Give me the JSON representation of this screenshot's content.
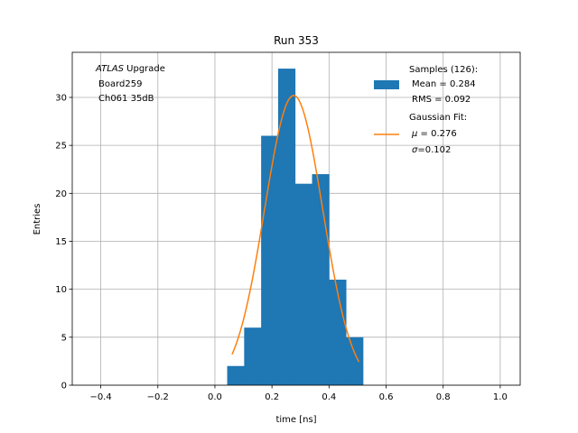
{
  "chart_data": {
    "type": "bar",
    "title": "Run 353",
    "xlabel": "time [ns]",
    "ylabel": "Entries",
    "xlim": [
      -0.5,
      1.07
    ],
    "ylim": [
      0,
      34.7
    ],
    "xticks": [
      -0.4,
      -0.2,
      0.0,
      0.2,
      0.4,
      0.6,
      0.8,
      1.0
    ],
    "xtick_labels": [
      "−0.4",
      "−0.2",
      "0.0",
      "0.2",
      "0.4",
      "0.6",
      "0.8",
      "1.0"
    ],
    "yticks": [
      0,
      5,
      10,
      15,
      20,
      25,
      30
    ],
    "ytick_labels": [
      "0",
      "5",
      "10",
      "15",
      "20",
      "25",
      "30"
    ],
    "grid": true,
    "legend_position": "top-right",
    "histogram": {
      "name": "Samples (126):",
      "bin_edges": [
        0.043,
        0.1025,
        0.162,
        0.2215,
        0.281,
        0.3405,
        0.4,
        0.4595,
        0.519
      ],
      "counts": [
        2,
        6,
        26,
        33,
        21,
        22,
        11,
        5
      ],
      "color": "#1f77b4"
    },
    "fit": {
      "name": "Gaussian Fit:",
      "mu": 0.276,
      "sigma": 0.102,
      "amplitude": 30.2,
      "x_range": [
        0.06,
        0.505
      ],
      "color": "#ff7f0e"
    },
    "annotation": {
      "line1_italic": "ATLAS",
      "line1_rest": " Upgrade",
      "line2": "Board259",
      "line3": "Ch061 35dB"
    },
    "legend": {
      "samples_line1": "Samples (126):",
      "samples_line2": "Mean = 0.284",
      "samples_line3": "RMS = 0.092",
      "fit_line1": "Gaussian Fit:",
      "fit_mu_symbol": "μ",
      "fit_mu_rest": " = 0.276",
      "fit_sigma_symbol": "σ",
      "fit_sigma_rest": "=0.102"
    }
  }
}
